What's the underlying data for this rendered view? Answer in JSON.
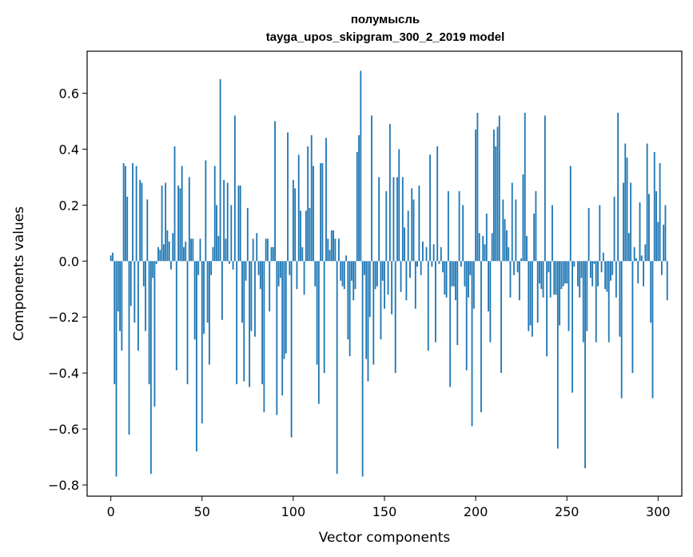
{
  "chart_data": {
    "type": "bar",
    "title_line1": "полумысль",
    "title_line2": "tayga_upos_skipgram_300_2_2019 model",
    "xlabel": "Vector components",
    "ylabel": "Components values",
    "xlim": [
      -13,
      313
    ],
    "ylim": [
      -0.84,
      0.75
    ],
    "xticks": [
      0,
      50,
      100,
      150,
      200,
      250,
      300
    ],
    "xtick_labels": [
      "0",
      "50",
      "100",
      "150",
      "200",
      "250",
      "300"
    ],
    "yticks": [
      0.6,
      0.4,
      0.2,
      0.0,
      -0.2,
      -0.4,
      -0.6,
      -0.8
    ],
    "ytick_labels": [
      "0.6",
      "0.4",
      "0.2",
      "0.0",
      "−0.2",
      "−0.4",
      "−0.6",
      "−0.8"
    ],
    "bar_color": "#1f77b4",
    "values": [
      0.02,
      0.03,
      -0.44,
      -0.77,
      -0.18,
      -0.25,
      -0.32,
      0.35,
      0.34,
      0.23,
      -0.62,
      -0.16,
      0.35,
      -0.22,
      0.34,
      -0.32,
      0.29,
      0.28,
      -0.09,
      -0.25,
      0.22,
      -0.44,
      -0.76,
      -0.06,
      -0.52,
      -0.01,
      0.05,
      0.04,
      0.27,
      0.06,
      0.28,
      0.11,
      0.07,
      -0.03,
      0.1,
      0.41,
      -0.39,
      0.27,
      0.26,
      0.34,
      0.05,
      0.07,
      -0.44,
      0.3,
      0.08,
      0.08,
      -0.28,
      -0.68,
      -0.05,
      0.08,
      -0.58,
      -0.26,
      0.36,
      -0.22,
      -0.37,
      -0.05,
      0.05,
      0.34,
      0.2,
      0.09,
      0.65,
      -0.21,
      0.29,
      0.08,
      0.28,
      -0.01,
      0.2,
      -0.03,
      0.52,
      -0.44,
      0.27,
      0.27,
      -0.22,
      -0.43,
      -0.07,
      0.19,
      -0.45,
      -0.25,
      0.08,
      -0.27,
      0.1,
      -0.05,
      -0.1,
      -0.44,
      -0.54,
      0.08,
      0.08,
      -0.18,
      0.05,
      0.05,
      0.5,
      -0.55,
      -0.09,
      -0.06,
      -0.48,
      -0.35,
      -0.33,
      0.46,
      -0.05,
      -0.63,
      0.29,
      0.26,
      -0.1,
      0.38,
      0.18,
      0.05,
      -0.12,
      0.18,
      0.41,
      0.19,
      0.45,
      0.34,
      -0.09,
      -0.37,
      -0.51,
      0.35,
      0.35,
      -0.4,
      0.44,
      0.08,
      0.04,
      0.11,
      0.11,
      0.08,
      -0.76,
      0.08,
      -0.07,
      -0.09,
      -0.1,
      0.02,
      -0.28,
      -0.34,
      -0.07,
      -0.14,
      -0.1,
      0.39,
      0.45,
      0.68,
      -0.77,
      -0.05,
      -0.35,
      -0.43,
      -0.2,
      0.52,
      -0.37,
      -0.1,
      -0.09,
      0.3,
      -0.28,
      -0.07,
      -0.17,
      0.25,
      -0.12,
      0.49,
      -0.19,
      0.3,
      -0.4,
      0.3,
      0.4,
      -0.11,
      0.3,
      0.12,
      -0.14,
      0.18,
      -0.06,
      0.26,
      0.22,
      -0.17,
      -0.02,
      0.27,
      -0.05,
      0.07,
      0.0,
      0.05,
      -0.32,
      0.38,
      -0.02,
      0.06,
      -0.29,
      0.41,
      -0.01,
      0.05,
      -0.04,
      -0.12,
      -0.13,
      0.25,
      -0.45,
      -0.09,
      -0.09,
      -0.14,
      -0.3,
      0.25,
      -0.02,
      0.2,
      -0.09,
      -0.39,
      -0.13,
      -0.05,
      -0.59,
      -0.17,
      0.47,
      0.53,
      0.1,
      -0.54,
      0.09,
      0.06,
      0.17,
      -0.18,
      -0.29,
      0.1,
      0.47,
      0.41,
      0.48,
      0.52,
      -0.4,
      0.22,
      0.15,
      0.11,
      0.05,
      -0.13,
      0.28,
      -0.05,
      0.22,
      -0.04,
      -0.14,
      0.01,
      0.31,
      0.53,
      0.09,
      -0.25,
      -0.23,
      -0.27,
      0.17,
      0.25,
      -0.22,
      -0.08,
      -0.1,
      -0.13,
      0.52,
      -0.34,
      -0.04,
      -0.13,
      0.2,
      -0.12,
      -0.12,
      -0.67,
      -0.23,
      -0.1,
      -0.09,
      -0.08,
      -0.08,
      -0.25,
      0.34,
      -0.47,
      -0.02,
      0.0,
      -0.09,
      -0.13,
      -0.06,
      -0.29,
      -0.74,
      -0.25,
      0.19,
      -0.06,
      -0.09,
      -0.01,
      -0.29,
      -0.09,
      0.2,
      -0.04,
      0.03,
      -0.1,
      -0.11,
      -0.29,
      -0.07,
      -0.05,
      0.23,
      -0.13,
      0.53,
      -0.27,
      -0.49,
      0.28,
      0.42,
      0.37,
      0.1,
      0.28,
      -0.4,
      0.05,
      0.01,
      -0.08,
      0.21,
      0.02,
      -0.09,
      0.06,
      0.42,
      0.24,
      -0.22,
      -0.49,
      0.39,
      0.25,
      0.14,
      0.35,
      -0.05,
      0.13,
      0.2,
      -0.14
    ]
  }
}
